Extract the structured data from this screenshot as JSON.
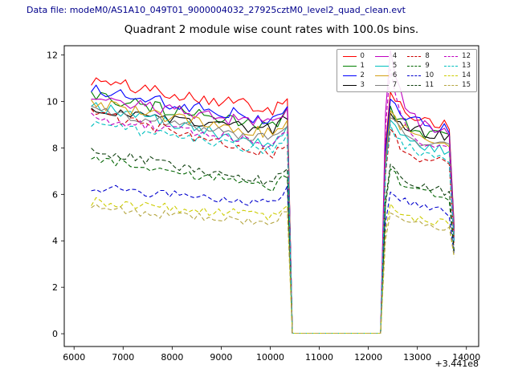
{
  "header": {
    "label": "Data file: modeM0/AS1A10_049T01_9000004032_27925cztM0_level2_quad_clean.evt"
  },
  "chart_data": {
    "type": "line",
    "title": "Quadrant 2 module wise count rates with 100.0s bins.",
    "xlabel": "",
    "ylabel": "",
    "x_offset_label": "+3.441e8",
    "xlim": [
      5800,
      14250
    ],
    "ylim": [
      -0.55,
      12.4
    ],
    "xticks": [
      6000,
      7000,
      8000,
      9000,
      10000,
      11000,
      12000,
      13000,
      14000
    ],
    "yticks": [
      0,
      2,
      4,
      6,
      8,
      10,
      12
    ],
    "grid": false,
    "legend_position": "upper right",
    "legend_ncol": 4,
    "x_start": 6350,
    "x_end": 13750,
    "x_step": 100,
    "gap": {
      "start": 10450,
      "end": 12250,
      "value": 0.02
    },
    "spike_x": 12450,
    "series": [
      {
        "name": "0",
        "color": "#ff0000",
        "dash": false,
        "y0": 10.9,
        "y1": 9.6,
        "spike": 10.4,
        "y2": 9.4,
        "y3": 4.6,
        "noise": 0.28
      },
      {
        "name": "1",
        "color": "#008000",
        "dash": false,
        "y0": 10.2,
        "y1": 8.8,
        "spike": 9.8,
        "y2": 8.8,
        "y3": 4.3,
        "noise": 0.26
      },
      {
        "name": "2",
        "color": "#0000ff",
        "dash": false,
        "y0": 10.5,
        "y1": 9.1,
        "spike": 10.1,
        "y2": 9.2,
        "y3": 4.5,
        "noise": 0.27
      },
      {
        "name": "3",
        "color": "#000000",
        "dash": false,
        "y0": 9.6,
        "y1": 8.7,
        "spike": 9.5,
        "y2": 8.9,
        "y3": 4.4,
        "noise": 0.24
      },
      {
        "name": "4",
        "color": "#bf00bf",
        "dash": false,
        "y0": 10.1,
        "y1": 8.9,
        "spike": 12.2,
        "y2": 9.0,
        "y3": 4.4,
        "noise": 0.25
      },
      {
        "name": "5",
        "color": "#00bfbf",
        "dash": false,
        "y0": 9.8,
        "y1": 8.0,
        "spike": 9.2,
        "y2": 8.3,
        "y3": 4.1,
        "noise": 0.26
      },
      {
        "name": "6",
        "color": "#d4a017",
        "dash": false,
        "y0": 9.9,
        "y1": 8.5,
        "spike": 9.6,
        "y2": 8.6,
        "y3": 4.2,
        "noise": 0.25
      },
      {
        "name": "7",
        "color": "#7f7f7f",
        "dash": false,
        "y0": 9.6,
        "y1": 8.3,
        "spike": 9.3,
        "y2": 8.4,
        "y3": 4.1,
        "noise": 0.24
      },
      {
        "name": "8",
        "color": "#cc0000",
        "dash": true,
        "y0": 9.5,
        "y1": 7.6,
        "spike": 8.8,
        "y2": 7.7,
        "y3": 3.8,
        "noise": 0.22
      },
      {
        "name": "9",
        "color": "#006400",
        "dash": true,
        "y0": 7.6,
        "y1": 6.2,
        "spike": 7.1,
        "y2": 6.3,
        "y3": 3.5,
        "noise": 0.2
      },
      {
        "name": "10",
        "color": "#0000cd",
        "dash": true,
        "y0": 6.3,
        "y1": 5.5,
        "spike": 6.1,
        "y2": 5.6,
        "y3": 3.4,
        "noise": 0.2
      },
      {
        "name": "11",
        "color": "#0b3d0b",
        "dash": true,
        "y0": 7.9,
        "y1": 6.4,
        "spike": 7.3,
        "y2": 6.5,
        "y3": 3.5,
        "noise": 0.2
      },
      {
        "name": "12",
        "color": "#bf00bf",
        "dash": true,
        "y0": 9.3,
        "y1": 8.1,
        "spike": 11.4,
        "y2": 8.2,
        "y3": 4.0,
        "noise": 0.22
      },
      {
        "name": "13",
        "color": "#00bfbf",
        "dash": true,
        "y0": 9.0,
        "y1": 7.8,
        "spike": 9.0,
        "y2": 7.9,
        "y3": 3.9,
        "noise": 0.22
      },
      {
        "name": "14",
        "color": "#cccc00",
        "dash": true,
        "y0": 5.7,
        "y1": 5.0,
        "spike": 5.6,
        "y2": 5.1,
        "y3": 3.3,
        "noise": 0.2
      },
      {
        "name": "15",
        "color": "#b5a642",
        "dash": true,
        "y0": 5.4,
        "y1": 4.7,
        "spike": 5.2,
        "y2": 4.8,
        "y3": 3.3,
        "noise": 0.2
      }
    ]
  }
}
